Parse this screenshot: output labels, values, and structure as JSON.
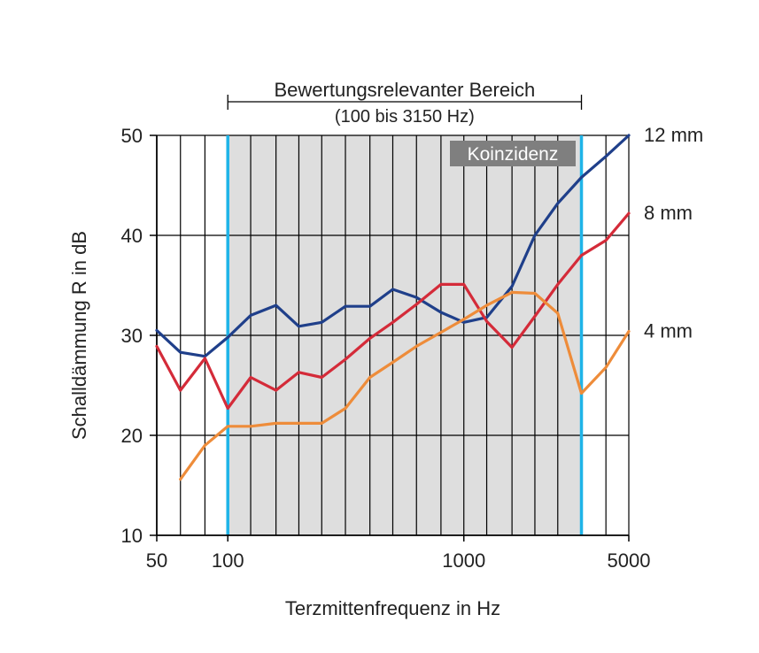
{
  "chart_data": {
    "type": "line",
    "title": "",
    "xlabel": "Terzmittenfrequenz in Hz",
    "ylabel": "Schalldämmung R in dB",
    "x_scale": "log",
    "xlim": [
      50,
      5000
    ],
    "ylim": [
      10,
      50
    ],
    "y_ticks": [
      10,
      20,
      30,
      40,
      50
    ],
    "x_tick_labels": [
      {
        "value": 50,
        "label": "50"
      },
      {
        "value": 100,
        "label": "100"
      },
      {
        "value": 1000,
        "label": "1000"
      },
      {
        "value": 5000,
        "label": "5000"
      }
    ],
    "x_gridlines": [
      63,
      80,
      100,
      125,
      160,
      200,
      250,
      315,
      400,
      500,
      630,
      800,
      1000,
      1250,
      1600,
      2000,
      2500,
      3150,
      4000
    ],
    "grid": true,
    "region": {
      "label": "Bewertungsrelevanter Bereich",
      "sublabel": "(100 bis 3150 Hz)",
      "x_start": 100,
      "x_end": 3150,
      "fill": "#dedede",
      "boundary_color": "#1fb4e8"
    },
    "annotation": {
      "text": "Koinzidenz",
      "fill": "#7f7f7f",
      "text_color": "#ffffff"
    },
    "x": [
      50,
      63,
      80,
      100,
      125,
      160,
      200,
      250,
      315,
      400,
      500,
      630,
      800,
      1000,
      1250,
      1600,
      2000,
      2500,
      3150,
      4000,
      5000
    ],
    "series": [
      {
        "name": "12 mm",
        "color": "#1f3f8a",
        "values": [
          30.5,
          28.3,
          27.9,
          29.8,
          32.0,
          33.0,
          30.9,
          31.3,
          32.9,
          32.9,
          34.6,
          33.8,
          32.3,
          31.3,
          31.8,
          34.9,
          40.0,
          43.2,
          45.8,
          47.9,
          50.0
        ]
      },
      {
        "name": "8 mm",
        "color": "#d42b39",
        "values": [
          28.9,
          24.5,
          27.7,
          22.7,
          25.8,
          24.5,
          26.3,
          25.8,
          27.6,
          29.7,
          31.3,
          33.1,
          35.1,
          35.1,
          31.4,
          28.8,
          31.9,
          35.1,
          38.0,
          39.5,
          42.2
        ]
      },
      {
        "name": "4 mm",
        "color": "#ee8c3a",
        "values": [
          null,
          15.6,
          19.0,
          20.9,
          20.9,
          21.2,
          21.2,
          21.2,
          22.7,
          25.8,
          27.3,
          28.9,
          30.3,
          31.6,
          33.0,
          34.3,
          34.2,
          32.2,
          24.2,
          26.8,
          30.4
        ]
      }
    ]
  }
}
